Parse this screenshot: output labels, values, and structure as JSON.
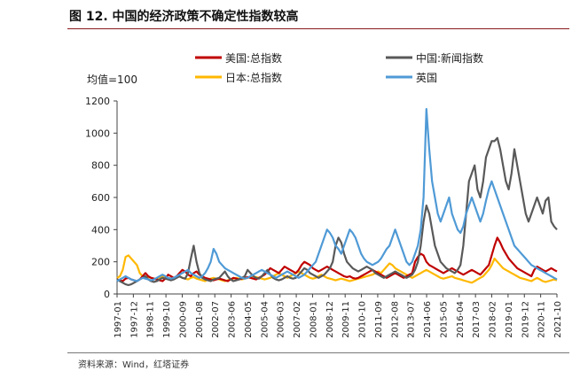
{
  "figure": {
    "title": "图 12. 中国的经济政策不确定性指数较高",
    "source": "资料来源：Wind，红塔证券"
  },
  "chart_data": {
    "type": "line",
    "title": "图 12. 中国的经济政策不确定性指数较高",
    "unit_label": "均值=100",
    "xlabel": "",
    "ylabel": "",
    "ylim": [
      0,
      1200
    ],
    "yticks": [
      0,
      200,
      400,
      600,
      800,
      1000,
      1200
    ],
    "x_tick_labels": [
      "1997-01",
      "1997-12",
      "1998-11",
      "1999-10",
      "2000-09",
      "2001-08",
      "2002-07",
      "2003-06",
      "2004-05",
      "2005-04",
      "2006-03",
      "2007-02",
      "2008-01",
      "2008-12",
      "2009-11",
      "2010-10",
      "2011-09",
      "2012-08",
      "2013-07",
      "2014-06",
      "2015-05",
      "2016-04",
      "2017-03",
      "2018-02",
      "2019-01",
      "2019-12",
      "2020-11",
      "2021-10"
    ],
    "grid": false,
    "legend_position": "top",
    "series": [
      {
        "name": "美国:总指数",
        "color": "#c00000",
        "values": [
          90,
          85,
          80,
          95,
          100,
          90,
          85,
          80,
          90,
          110,
          130,
          110,
          100,
          95,
          90,
          85,
          80,
          95,
          120,
          110,
          100,
          110,
          130,
          150,
          140,
          120,
          110,
          130,
          140,
          120,
          110,
          100,
          95,
          90,
          85,
          90,
          95,
          90,
          85,
          80,
          90,
          100,
          95,
          90,
          95,
          100,
          105,
          100,
          95,
          90,
          100,
          110,
          120,
          140,
          160,
          150,
          140,
          130,
          150,
          170,
          160,
          150,
          140,
          130,
          150,
          180,
          200,
          190,
          180,
          160,
          150,
          140,
          150,
          160,
          170,
          160,
          150,
          140,
          130,
          120,
          110,
          105,
          110,
          100,
          95,
          100,
          110,
          120,
          130,
          140,
          150,
          140,
          130,
          120,
          110,
          100,
          110,
          120,
          130,
          120,
          110,
          100,
          110,
          120,
          130,
          200,
          230,
          250,
          240,
          200,
          180,
          170,
          160,
          150,
          140,
          130,
          140,
          150,
          160,
          150,
          140,
          130,
          120,
          130,
          140,
          150,
          140,
          130,
          120,
          140,
          160,
          180,
          240,
          300,
          350,
          320,
          280,
          250,
          220,
          200,
          180,
          160,
          150,
          140,
          130,
          120,
          110,
          150,
          170,
          160,
          150,
          140,
          150,
          160,
          150,
          140
        ]
      },
      {
        "name": "日本:总指数",
        "color": "#ffb800",
        "values": [
          100,
          110,
          150,
          230,
          240,
          220,
          200,
          180,
          130,
          110,
          100,
          105,
          100,
          95,
          90,
          100,
          110,
          105,
          100,
          95,
          100,
          105,
          110,
          100,
          95,
          90,
          100,
          105,
          95,
          90,
          85,
          80,
          90,
          95,
          100,
          95,
          90,
          85,
          80,
          85,
          90,
          95,
          100,
          95,
          90,
          95,
          100,
          105,
          110,
          105,
          100,
          95,
          90,
          95,
          100,
          110,
          120,
          130,
          120,
          110,
          100,
          110,
          120,
          130,
          140,
          130,
          120,
          110,
          100,
          95,
          100,
          110,
          120,
          110,
          100,
          95,
          90,
          85,
          90,
          95,
          90,
          85,
          80,
          85,
          90,
          95,
          100,
          105,
          110,
          115,
          120,
          130,
          140,
          130,
          150,
          170,
          190,
          180,
          160,
          150,
          140,
          130,
          120,
          110,
          100,
          110,
          120,
          130,
          140,
          150,
          140,
          130,
          120,
          110,
          100,
          95,
          100,
          105,
          110,
          100,
          95,
          90,
          85,
          80,
          75,
          70,
          80,
          90,
          100,
          110,
          130,
          150,
          180,
          220,
          200,
          180,
          160,
          150,
          140,
          130,
          120,
          110,
          100,
          95,
          90,
          85,
          80,
          90,
          100,
          90,
          80,
          75,
          80,
          85,
          90,
          85
        ]
      },
      {
        "name": "中国:新闻指数",
        "color": "#595959",
        "values": [
          90,
          80,
          70,
          60,
          55,
          60,
          70,
          80,
          90,
          100,
          110,
          90,
          80,
          75,
          80,
          90,
          100,
          95,
          90,
          85,
          90,
          100,
          110,
          100,
          95,
          130,
          220,
          300,
          200,
          130,
          100,
          90,
          85,
          80,
          90,
          95,
          100,
          120,
          140,
          110,
          90,
          80,
          85,
          90,
          100,
          110,
          150,
          130,
          110,
          100,
          95,
          110,
          130,
          150,
          120,
          100,
          90,
          85,
          90,
          100,
          110,
          100,
          95,
          100,
          120,
          140,
          160,
          150,
          130,
          120,
          110,
          100,
          110,
          120,
          140,
          160,
          200,
          300,
          350,
          320,
          250,
          200,
          180,
          160,
          150,
          140,
          150,
          160,
          170,
          160,
          150,
          130,
          120,
          110,
          100,
          110,
          120,
          130,
          140,
          130,
          120,
          110,
          100,
          110,
          120,
          150,
          200,
          300,
          450,
          550,
          500,
          400,
          300,
          250,
          200,
          180,
          160,
          150,
          140,
          130,
          150,
          180,
          300,
          500,
          700,
          750,
          800,
          650,
          600,
          700,
          850,
          900,
          950,
          950,
          970,
          900,
          800,
          700,
          650,
          750,
          900,
          800,
          700,
          600,
          500,
          450,
          500,
          550,
          600,
          550,
          500,
          580,
          600,
          450,
          420,
          400
        ]
      },
      {
        "name": "英国",
        "color": "#4f9ad6",
        "values": [
          80,
          90,
          100,
          110,
          100,
          90,
          85,
          80,
          90,
          100,
          95,
          90,
          85,
          90,
          100,
          110,
          120,
          110,
          100,
          95,
          100,
          110,
          120,
          130,
          140,
          150,
          130,
          120,
          110,
          100,
          110,
          130,
          160,
          200,
          280,
          250,
          200,
          180,
          160,
          150,
          140,
          130,
          120,
          110,
          100,
          95,
          100,
          110,
          120,
          130,
          140,
          150,
          140,
          130,
          120,
          110,
          100,
          110,
          120,
          130,
          140,
          130,
          120,
          110,
          100,
          110,
          120,
          140,
          160,
          180,
          200,
          250,
          300,
          350,
          400,
          380,
          350,
          300,
          280,
          250,
          300,
          350,
          400,
          380,
          350,
          300,
          250,
          220,
          200,
          190,
          180,
          190,
          200,
          220,
          250,
          280,
          300,
          350,
          400,
          350,
          300,
          250,
          200,
          180,
          200,
          250,
          300,
          400,
          600,
          1150,
          900,
          700,
          600,
          500,
          450,
          500,
          550,
          600,
          500,
          450,
          400,
          380,
          420,
          500,
          550,
          600,
          550,
          500,
          450,
          500,
          580,
          650,
          700,
          650,
          600,
          550,
          500,
          450,
          400,
          350,
          300,
          280,
          260,
          240,
          220,
          200,
          180,
          170,
          160,
          150,
          140,
          130,
          120,
          110,
          100,
          90
        ]
      }
    ]
  }
}
